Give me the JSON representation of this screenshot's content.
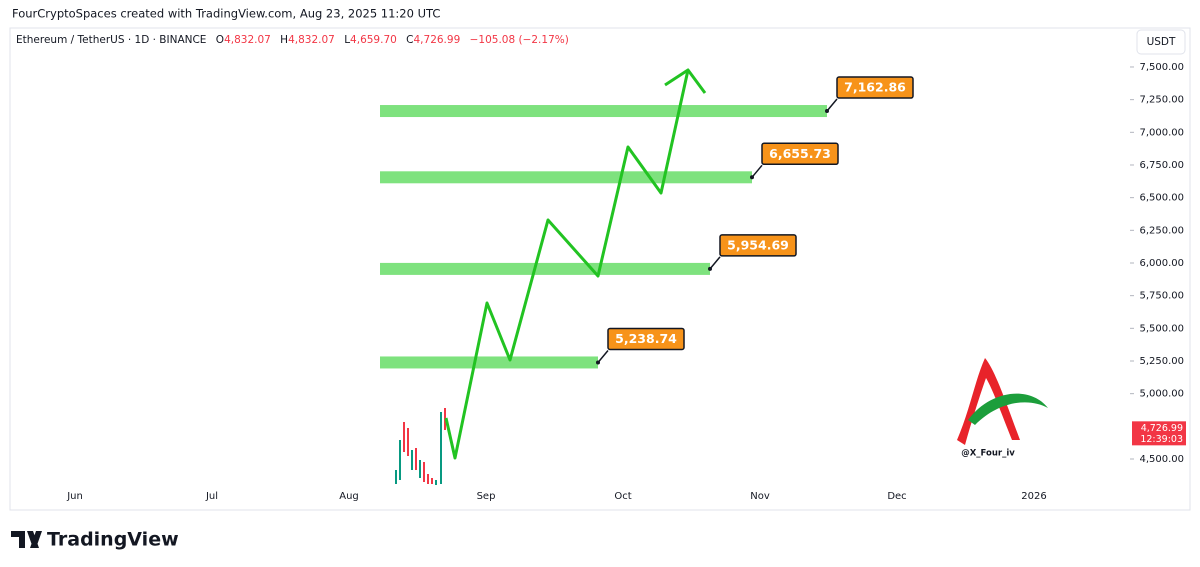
{
  "header": {
    "attribution": "FourCryptoSpaces created with TradingView.com, Aug 23, 2025 11:20 UTC"
  },
  "chart_data": {
    "type": "price_levels",
    "symbol": "Ethereum / TetherUS · 1D · BINANCE",
    "ohlc": [
      {
        "key": "O",
        "value": "4,832.07"
      },
      {
        "key": "H",
        "value": "4,832.07"
      },
      {
        "key": "L",
        "value": "4,659.70"
      },
      {
        "key": "C",
        "value": "4,726.99"
      }
    ],
    "change": "−105.08 (−2.17%)",
    "currency": "USDT",
    "categories": [
      "Jun",
      "Jul",
      "Aug",
      "Sep",
      "Oct",
      "Nov",
      "Dec",
      "2026"
    ],
    "ylim": [
      4301,
      7783
    ],
    "yticks": [
      {
        "value": 4500,
        "label": "4,500.00"
      },
      {
        "value": 5000,
        "label": "5,000.00"
      },
      {
        "value": 5250,
        "label": "5,250.00"
      },
      {
        "value": 5500,
        "label": "5,500.00"
      },
      {
        "value": 5750,
        "label": "5,750.00"
      },
      {
        "value": 6000,
        "label": "6,000.00"
      },
      {
        "value": 6250,
        "label": "6,250.00"
      },
      {
        "value": 6500,
        "label": "6,500.00"
      },
      {
        "value": 6750,
        "label": "6,750.00"
      },
      {
        "value": 7000,
        "label": "7,000.00"
      },
      {
        "value": 7250,
        "label": "7,250.00"
      },
      {
        "value": 7500,
        "label": "7,500.00"
      }
    ],
    "levels": {
      "values": [
        5238.74,
        5954.69,
        6655.73,
        7162.86
      ],
      "value_labels": [
        "5,238.74",
        "5,954.69",
        "6,655.73",
        "7,162.86"
      ],
      "color": "#7ee27e"
    },
    "last_price": {
      "value": 4726.99,
      "label": "4,726.99",
      "countdown": "12:39:03",
      "color": "#f23645"
    },
    "watermark": "@X_Four_iv"
  },
  "footer": {
    "brand": "TradingView"
  }
}
